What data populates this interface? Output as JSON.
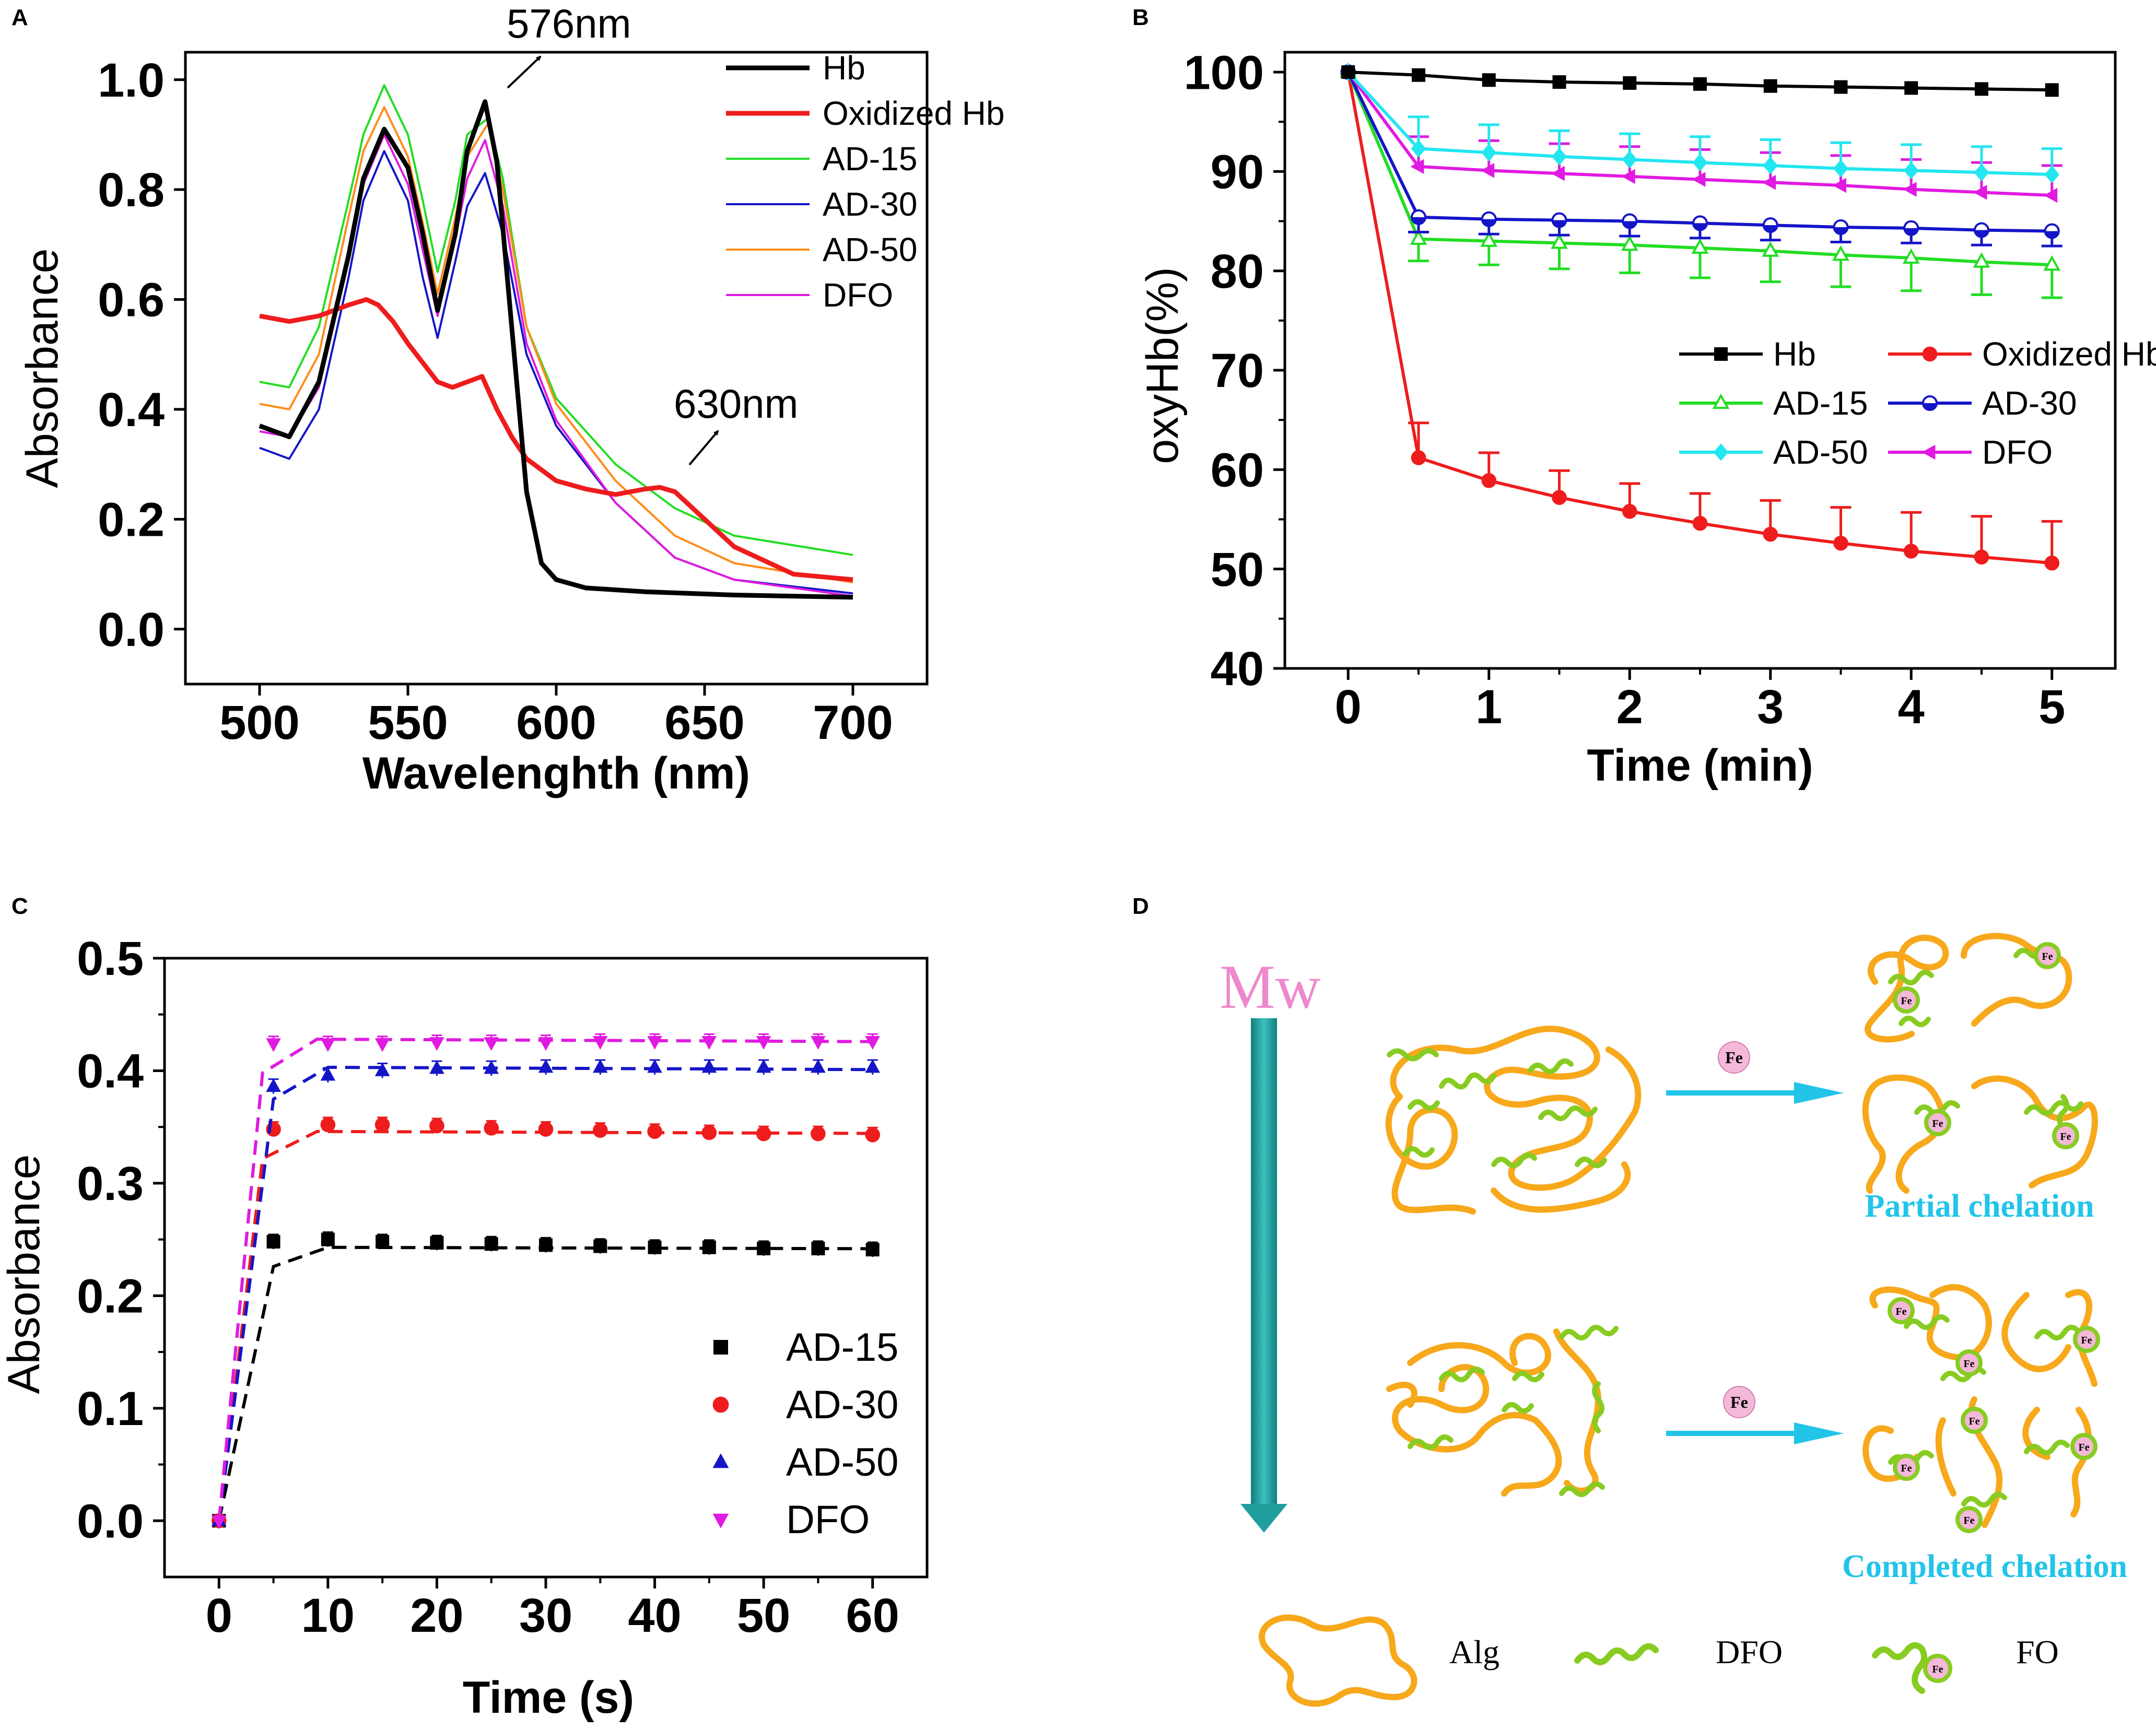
{
  "colors": {
    "black": "#000000",
    "red": "#ee1c1c",
    "green": "#22dd22",
    "blue": "#1515c8",
    "orange": "#ff8c1a",
    "magenta": "#e01ae0",
    "cyan": "#22e6f0",
    "alg": "#f7a81b",
    "dfo": "#88cc22",
    "fe": "#f4b8d8",
    "arrow": "#22c4e8",
    "mw": "#ee88cc",
    "teal": "#1f9e9e"
  },
  "panels": {
    "A": {
      "letter": "A"
    },
    "B": {
      "letter": "B"
    },
    "C": {
      "letter": "C"
    },
    "D": {
      "letter": "D"
    }
  },
  "chart_data": [
    {
      "id": "A",
      "type": "line",
      "title": "",
      "xlabel": "Wavelenghth (nm)",
      "ylabel": "Absorbance",
      "xlim": [
        475,
        725
      ],
      "ylim": [
        -0.1,
        1.05
      ],
      "xticks": [
        500,
        550,
        600,
        650,
        700
      ],
      "yticks": [
        0.0,
        0.2,
        0.4,
        0.6,
        0.8,
        1.0
      ],
      "xtick_labels": [
        "500",
        "550",
        "600",
        "650",
        "700"
      ],
      "ytick_labels": [
        "0.0",
        "0.2",
        "0.4",
        "0.6",
        "0.8",
        "1.0"
      ],
      "annotations": [
        {
          "text": "576nm",
          "at": [
            577,
            0.96
          ]
        },
        {
          "text": "630nm",
          "at": [
            633,
            0.26
          ]
        }
      ],
      "legend_position": "top-right",
      "series": [
        {
          "name": "Hb",
          "color": "#000000",
          "x": [
            500,
            510,
            520,
            530,
            535,
            542,
            550,
            555,
            560,
            566,
            570,
            576,
            580,
            585,
            590,
            595,
            600,
            610,
            630,
            660,
            700
          ],
          "y": [
            0.37,
            0.35,
            0.45,
            0.68,
            0.82,
            0.91,
            0.84,
            0.72,
            0.58,
            0.72,
            0.87,
            0.96,
            0.85,
            0.55,
            0.25,
            0.12,
            0.09,
            0.075,
            0.068,
            0.062,
            0.058
          ]
        },
        {
          "name": "Oxidized Hb",
          "color": "#ee1c1c",
          "x": [
            500,
            510,
            520,
            530,
            536,
            540,
            545,
            550,
            560,
            565,
            570,
            575,
            580,
            585,
            590,
            600,
            610,
            620,
            630,
            635,
            640,
            650,
            660,
            680,
            700
          ],
          "y": [
            0.57,
            0.56,
            0.57,
            0.59,
            0.6,
            0.59,
            0.56,
            0.52,
            0.45,
            0.44,
            0.45,
            0.46,
            0.4,
            0.35,
            0.31,
            0.27,
            0.255,
            0.245,
            0.255,
            0.258,
            0.25,
            0.2,
            0.15,
            0.1,
            0.09
          ]
        },
        {
          "name": "AD-15",
          "color": "#22dd22",
          "x": [
            500,
            510,
            520,
            530,
            535,
            542,
            550,
            555,
            560,
            566,
            570,
            577,
            582,
            590,
            600,
            620,
            640,
            660,
            700
          ],
          "y": [
            0.45,
            0.44,
            0.55,
            0.78,
            0.9,
            0.99,
            0.9,
            0.78,
            0.65,
            0.78,
            0.9,
            0.93,
            0.82,
            0.55,
            0.42,
            0.3,
            0.22,
            0.17,
            0.135
          ]
        },
        {
          "name": "AD-30",
          "color": "#1515c8",
          "x": [
            500,
            510,
            520,
            530,
            535,
            542,
            550,
            555,
            560,
            566,
            570,
            576,
            582,
            590,
            600,
            620,
            640,
            660,
            700
          ],
          "y": [
            0.33,
            0.31,
            0.4,
            0.64,
            0.78,
            0.87,
            0.78,
            0.64,
            0.53,
            0.67,
            0.77,
            0.83,
            0.72,
            0.5,
            0.37,
            0.23,
            0.13,
            0.09,
            0.065
          ]
        },
        {
          "name": "AD-50",
          "color": "#ff8c1a",
          "x": [
            500,
            510,
            520,
            530,
            535,
            542,
            550,
            555,
            560,
            566,
            570,
            577,
            582,
            590,
            600,
            620,
            640,
            660,
            700
          ],
          "y": [
            0.41,
            0.4,
            0.5,
            0.75,
            0.87,
            0.95,
            0.86,
            0.74,
            0.61,
            0.75,
            0.86,
            0.92,
            0.8,
            0.55,
            0.41,
            0.27,
            0.17,
            0.12,
            0.085
          ]
        },
        {
          "name": "DFO",
          "color": "#e01ae0",
          "x": [
            500,
            510,
            520,
            530,
            535,
            542,
            550,
            555,
            560,
            566,
            570,
            576,
            582,
            590,
            600,
            620,
            640,
            660,
            700
          ],
          "y": [
            0.36,
            0.35,
            0.44,
            0.67,
            0.81,
            0.9,
            0.81,
            0.69,
            0.57,
            0.71,
            0.82,
            0.89,
            0.77,
            0.52,
            0.38,
            0.23,
            0.13,
            0.09,
            0.06
          ]
        }
      ]
    },
    {
      "id": "B",
      "type": "line",
      "title": "",
      "xlabel": "Time (min)",
      "ylabel": "oxyHb(%)",
      "xlim": [
        -0.45,
        5.45
      ],
      "ylim": [
        40,
        102
      ],
      "xticks": [
        0,
        1,
        2,
        3,
        4,
        5
      ],
      "yticks": [
        40,
        50,
        60,
        70,
        80,
        90,
        100
      ],
      "xtick_labels": [
        "0",
        "1",
        "2",
        "3",
        "4",
        "5"
      ],
      "ytick_labels": [
        "40",
        "50",
        "60",
        "70",
        "80",
        "90",
        "100"
      ],
      "legend_position": "lower-right inside",
      "x": [
        0,
        0.5,
        1,
        1.5,
        2,
        2.5,
        3,
        3.5,
        4,
        4.5,
        5
      ],
      "series": [
        {
          "name": "Hb",
          "color": "#000000",
          "marker": "square",
          "values": [
            100,
            99.7,
            99.2,
            99.0,
            98.9,
            98.8,
            98.6,
            98.5,
            98.4,
            98.3,
            98.2
          ],
          "errors": [
            0,
            0,
            0,
            0,
            0,
            0,
            0,
            0,
            0,
            0,
            0
          ]
        },
        {
          "name": "Oxidized Hb",
          "color": "#ee1c1c",
          "marker": "circle",
          "values": [
            100,
            61.2,
            58.9,
            57.2,
            55.8,
            54.6,
            53.5,
            52.6,
            51.8,
            51.2,
            50.6
          ],
          "errors": [
            0,
            3.5,
            2.8,
            2.7,
            2.8,
            3.0,
            3.4,
            3.6,
            3.9,
            4.1,
            4.2
          ]
        },
        {
          "name": "AD-15",
          "color": "#22dd22",
          "marker": "triangle-up-open",
          "values": [
            100,
            83.2,
            83.0,
            82.8,
            82.6,
            82.3,
            82.0,
            81.6,
            81.3,
            80.9,
            80.6
          ],
          "errors": [
            0,
            2.2,
            2.4,
            2.6,
            2.8,
            3.0,
            3.1,
            3.2,
            3.3,
            3.3,
            3.3
          ]
        },
        {
          "name": "AD-30",
          "color": "#1515c8",
          "marker": "circle-half",
          "values": [
            100,
            85.4,
            85.2,
            85.1,
            85.0,
            84.8,
            84.6,
            84.4,
            84.3,
            84.1,
            84.0
          ],
          "errors": [
            0,
            1.5,
            1.5,
            1.5,
            1.5,
            1.5,
            1.5,
            1.5,
            1.5,
            1.5,
            1.5
          ]
        },
        {
          "name": "AD-50",
          "color": "#22e6f0",
          "marker": "diamond",
          "values": [
            100,
            92.3,
            91.9,
            91.5,
            91.2,
            90.9,
            90.6,
            90.3,
            90.1,
            89.9,
            89.7
          ],
          "errors": [
            0,
            3.2,
            2.8,
            2.6,
            2.6,
            2.6,
            2.6,
            2.6,
            2.6,
            2.6,
            2.6
          ]
        },
        {
          "name": "DFO",
          "color": "#e01ae0",
          "marker": "triangle-left",
          "values": [
            100,
            90.5,
            90.1,
            89.8,
            89.5,
            89.2,
            88.9,
            88.6,
            88.2,
            87.9,
            87.6
          ],
          "errors": [
            0,
            3.0,
            3.0,
            3.0,
            3.0,
            3.0,
            3.0,
            3.0,
            3.0,
            3.0,
            3.0
          ]
        }
      ]
    },
    {
      "id": "C",
      "type": "scatter",
      "title": "",
      "xlabel": "Time (s)",
      "ylabel": "Absorbance",
      "xlim": [
        -5,
        65
      ],
      "ylim": [
        -0.05,
        0.5
      ],
      "xticks": [
        0,
        10,
        20,
        30,
        40,
        50,
        60
      ],
      "yticks": [
        0.0,
        0.1,
        0.2,
        0.3,
        0.4,
        0.5
      ],
      "xtick_labels": [
        "0",
        "10",
        "20",
        "30",
        "40",
        "50",
        "60"
      ],
      "ytick_labels": [
        "0.0",
        "0.1",
        "0.2",
        "0.3",
        "0.4",
        "0.5"
      ],
      "legend_position": "lower-right",
      "x": [
        0,
        5,
        10,
        15,
        20,
        25,
        30,
        35,
        40,
        45,
        50,
        55,
        60
      ],
      "series": [
        {
          "name": "AD-15",
          "color": "#000000",
          "marker": "square",
          "values": [
            0.0,
            0.248,
            0.25,
            0.248,
            0.247,
            0.246,
            0.245,
            0.244,
            0.243,
            0.243,
            0.242,
            0.242,
            0.241
          ],
          "fit_plateau": 0.243,
          "fit_knee": 5
        },
        {
          "name": "AD-30",
          "color": "#ee1c1c",
          "marker": "circle",
          "values": [
            0.0,
            0.348,
            0.352,
            0.352,
            0.351,
            0.349,
            0.348,
            0.347,
            0.346,
            0.345,
            0.344,
            0.344,
            0.343
          ],
          "fit_plateau": 0.346,
          "fit_knee": 4
        },
        {
          "name": "AD-50",
          "color": "#1515c8",
          "marker": "triangle-up",
          "values": [
            0.0,
            0.386,
            0.396,
            0.4,
            0.402,
            0.402,
            0.403,
            0.403,
            0.403,
            0.403,
            0.403,
            0.403,
            0.403
          ],
          "fit_plateau": 0.403,
          "fit_knee": 5
        },
        {
          "name": "DFO",
          "color": "#e01ae0",
          "marker": "triangle-down",
          "values": [
            0.0,
            0.424,
            0.424,
            0.424,
            0.425,
            0.425,
            0.425,
            0.426,
            0.426,
            0.426,
            0.426,
            0.426,
            0.426
          ],
          "fit_plateau": 0.428,
          "fit_knee": 4
        }
      ]
    }
  ],
  "diagram": {
    "mw_label": "Mw",
    "fe_label": "Fe",
    "partial_label": "Partial chelation",
    "completed_label": "Completed chelation",
    "legend": {
      "alg": "Alg",
      "dfo": "DFO",
      "fo": "FO"
    }
  }
}
